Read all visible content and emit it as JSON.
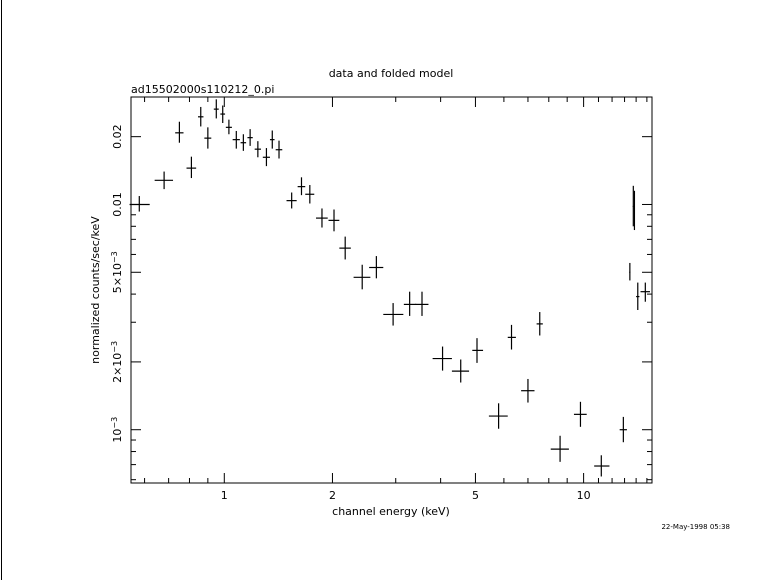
{
  "chart_data": {
    "type": "scatter",
    "title": "data and folded model",
    "subtitle": "ad15502000s110212_0.pi",
    "xlabel": "channel energy (keV)",
    "ylabel": "normalized counts/sec/keV",
    "xscale": "log",
    "yscale": "log",
    "xlim": [
      0.55,
      15.5
    ],
    "ylim": [
      0.00058,
      0.03
    ],
    "grid": false,
    "x_ticks": [
      {
        "value": 1,
        "label": "1"
      },
      {
        "value": 2,
        "label": "2"
      },
      {
        "value": 5,
        "label": "5"
      },
      {
        "value": 10,
        "label": "10"
      }
    ],
    "y_ticks": [
      {
        "value": 0.001,
        "label": "10",
        "sup": "−3"
      },
      {
        "value": 0.002,
        "label": "2×10",
        "sup": "−3"
      },
      {
        "value": 0.005,
        "label": "5×10",
        "sup": "−3"
      },
      {
        "value": 0.01,
        "label": "0.01",
        "sup": ""
      },
      {
        "value": 0.02,
        "label": "0.02",
        "sup": ""
      }
    ],
    "series": [
      {
        "marker": "cross-errorbar",
        "points": [
          {
            "x": 0.58,
            "xlo": 0.545,
            "xhi": 0.62,
            "y": 0.01,
            "ylo": 0.0093,
            "yhi": 0.0109
          },
          {
            "x": 0.68,
            "xlo": 0.64,
            "xhi": 0.72,
            "y": 0.0128,
            "ylo": 0.0117,
            "yhi": 0.014
          },
          {
            "x": 0.75,
            "xlo": 0.73,
            "xhi": 0.77,
            "y": 0.0208,
            "ylo": 0.0188,
            "yhi": 0.0233
          },
          {
            "x": 0.81,
            "xlo": 0.785,
            "xhi": 0.835,
            "y": 0.0145,
            "ylo": 0.0131,
            "yhi": 0.0163
          },
          {
            "x": 0.86,
            "xlo": 0.845,
            "xhi": 0.875,
            "y": 0.0245,
            "ylo": 0.0222,
            "yhi": 0.0271
          },
          {
            "x": 0.9,
            "xlo": 0.88,
            "xhi": 0.92,
            "y": 0.0197,
            "ylo": 0.0177,
            "yhi": 0.022
          },
          {
            "x": 0.95,
            "xlo": 0.935,
            "xhi": 0.965,
            "y": 0.0265,
            "ylo": 0.0241,
            "yhi": 0.0293
          },
          {
            "x": 0.99,
            "xlo": 0.975,
            "xhi": 1.005,
            "y": 0.0252,
            "ylo": 0.023,
            "yhi": 0.0275
          },
          {
            "x": 1.03,
            "xlo": 1.01,
            "xhi": 1.05,
            "y": 0.022,
            "ylo": 0.0205,
            "yhi": 0.0238
          },
          {
            "x": 1.08,
            "xlo": 1.055,
            "xhi": 1.105,
            "y": 0.0194,
            "ylo": 0.0177,
            "yhi": 0.0212
          },
          {
            "x": 1.13,
            "xlo": 1.11,
            "xhi": 1.15,
            "y": 0.0188,
            "ylo": 0.0173,
            "yhi": 0.0205
          },
          {
            "x": 1.18,
            "xlo": 1.16,
            "xhi": 1.2,
            "y": 0.0198,
            "ylo": 0.0182,
            "yhi": 0.0216
          },
          {
            "x": 1.24,
            "xlo": 1.215,
            "xhi": 1.265,
            "y": 0.0176,
            "ylo": 0.0162,
            "yhi": 0.0191
          },
          {
            "x": 1.31,
            "xlo": 1.28,
            "xhi": 1.34,
            "y": 0.0162,
            "ylo": 0.0148,
            "yhi": 0.0178
          },
          {
            "x": 1.36,
            "xlo": 1.34,
            "xhi": 1.38,
            "y": 0.0194,
            "ylo": 0.0177,
            "yhi": 0.0213
          },
          {
            "x": 1.42,
            "xlo": 1.39,
            "xhi": 1.45,
            "y": 0.0175,
            "ylo": 0.016,
            "yhi": 0.0192
          },
          {
            "x": 1.54,
            "xlo": 1.49,
            "xhi": 1.59,
            "y": 0.0104,
            "ylo": 0.0096,
            "yhi": 0.0113
          },
          {
            "x": 1.64,
            "xlo": 1.6,
            "xhi": 1.68,
            "y": 0.012,
            "ylo": 0.011,
            "yhi": 0.0132
          },
          {
            "x": 1.73,
            "xlo": 1.68,
            "xhi": 1.78,
            "y": 0.0111,
            "ylo": 0.0101,
            "yhi": 0.0122
          },
          {
            "x": 1.87,
            "xlo": 1.8,
            "xhi": 1.94,
            "y": 0.0087,
            "ylo": 0.0079,
            "yhi": 0.0096
          },
          {
            "x": 2.02,
            "xlo": 1.95,
            "xhi": 2.09,
            "y": 0.0085,
            "ylo": 0.0076,
            "yhi": 0.0095
          },
          {
            "x": 2.17,
            "xlo": 2.09,
            "xhi": 2.25,
            "y": 0.0064,
            "ylo": 0.0057,
            "yhi": 0.0072
          },
          {
            "x": 2.42,
            "xlo": 2.29,
            "xhi": 2.55,
            "y": 0.00475,
            "ylo": 0.0042,
            "yhi": 0.0054
          },
          {
            "x": 2.65,
            "xlo": 2.53,
            "xhi": 2.77,
            "y": 0.00525,
            "ylo": 0.0047,
            "yhi": 0.0059
          },
          {
            "x": 2.95,
            "xlo": 2.77,
            "xhi": 3.15,
            "y": 0.00325,
            "ylo": 0.0029,
            "yhi": 0.00365
          },
          {
            "x": 3.28,
            "xlo": 3.16,
            "xhi": 3.42,
            "y": 0.0036,
            "ylo": 0.0032,
            "yhi": 0.0041
          },
          {
            "x": 3.55,
            "xlo": 3.4,
            "xhi": 3.7,
            "y": 0.0036,
            "ylo": 0.0032,
            "yhi": 0.0041
          },
          {
            "x": 4.05,
            "xlo": 3.8,
            "xhi": 4.3,
            "y": 0.00207,
            "ylo": 0.00183,
            "yhi": 0.00234
          },
          {
            "x": 4.55,
            "xlo": 4.3,
            "xhi": 4.8,
            "y": 0.00182,
            "ylo": 0.00162,
            "yhi": 0.00205
          },
          {
            "x": 5.05,
            "xlo": 4.9,
            "xhi": 5.25,
            "y": 0.00225,
            "ylo": 0.00198,
            "yhi": 0.00255
          },
          {
            "x": 5.8,
            "xlo": 5.45,
            "xhi": 6.15,
            "y": 0.00115,
            "ylo": 0.00101,
            "yhi": 0.00131
          },
          {
            "x": 6.3,
            "xlo": 6.15,
            "xhi": 6.48,
            "y": 0.00257,
            "ylo": 0.00227,
            "yhi": 0.00292
          },
          {
            "x": 7.0,
            "xlo": 6.7,
            "xhi": 7.3,
            "y": 0.00149,
            "ylo": 0.00132,
            "yhi": 0.00168
          },
          {
            "x": 7.55,
            "xlo": 7.4,
            "xhi": 7.7,
            "y": 0.00295,
            "ylo": 0.00262,
            "yhi": 0.00333
          },
          {
            "x": 8.6,
            "xlo": 8.1,
            "xhi": 9.1,
            "y": 0.00082,
            "ylo": 0.00072,
            "yhi": 0.00094
          },
          {
            "x": 9.8,
            "xlo": 9.4,
            "xhi": 10.2,
            "y": 0.00117,
            "ylo": 0.00103,
            "yhi": 0.00133
          },
          {
            "x": 11.2,
            "xlo": 10.7,
            "xhi": 11.8,
            "y": 0.00069,
            "ylo": 0.00062,
            "yhi": 0.00077
          },
          {
            "x": 12.9,
            "xlo": 12.6,
            "xhi": 13.2,
            "y": 0.001,
            "ylo": 0.00088,
            "yhi": 0.00114
          },
          {
            "x": 13.45,
            "xlo": 13.4,
            "xhi": 13.5,
            "y": 0.005,
            "ylo": 0.0046,
            "yhi": 0.0055
          },
          {
            "x": 13.75,
            "xlo": 13.7,
            "xhi": 13.8,
            "y": 0.0098,
            "ylo": 0.008,
            "yhi": 0.0121
          },
          {
            "x": 13.85,
            "xlo": 13.8,
            "xhi": 13.9,
            "y": 0.0096,
            "ylo": 0.0077,
            "yhi": 0.0115
          },
          {
            "x": 14.15,
            "xlo": 14.0,
            "xhi": 14.3,
            "y": 0.0039,
            "ylo": 0.0034,
            "yhi": 0.0045
          },
          {
            "x": 14.85,
            "xlo": 14.4,
            "xhi": 15.3,
            "y": 0.0041,
            "ylo": 0.0037,
            "yhi": 0.0045
          }
        ]
      }
    ],
    "annotations": [
      {
        "text": "22-May-1998 05:38",
        "position": "bottom-right"
      }
    ]
  },
  "colors": {
    "background": "#ffffff",
    "ink": "#000000"
  }
}
